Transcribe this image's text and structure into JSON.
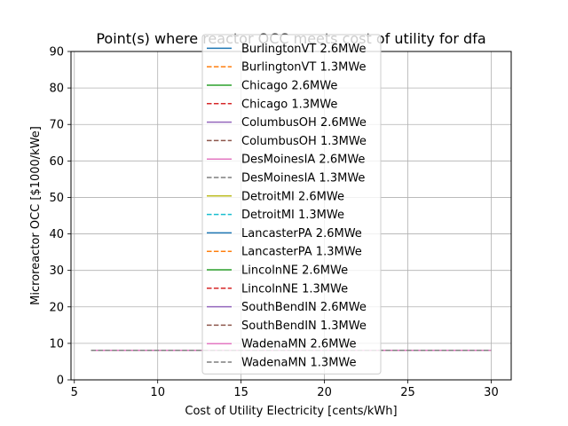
{
  "chart_data": {
    "type": "line",
    "title": "Point(s) where reactor OCC meets cost of utility for dfa",
    "xlabel": "Cost of Utility Electricity [cents/kWh]",
    "ylabel": "Microreactor OCC [$1000/kWe]",
    "xlim": [
      4.8,
      31.2
    ],
    "ylim": [
      0,
      90
    ],
    "xticks": [
      5,
      10,
      15,
      20,
      25,
      30
    ],
    "yticks": [
      0,
      10,
      20,
      30,
      40,
      50,
      60,
      70,
      80,
      90
    ],
    "grid": true,
    "legend_position": "center",
    "x": [
      6,
      30
    ],
    "series": [
      {
        "name": "BurlingtonVT 2.6MWe",
        "values": [
          8.1,
          8.1
        ],
        "color": "#1f77b4",
        "dash": "solid"
      },
      {
        "name": "BurlingtonVT 1.3MWe",
        "values": [
          8.1,
          8.1
        ],
        "color": "#ff7f0e",
        "dash": "dashed"
      },
      {
        "name": "Chicago 2.6MWe",
        "values": [
          8.1,
          8.1
        ],
        "color": "#2ca02c",
        "dash": "solid"
      },
      {
        "name": "Chicago 1.3MWe",
        "values": [
          8.1,
          8.1
        ],
        "color": "#d62728",
        "dash": "dashed"
      },
      {
        "name": "ColumbusOH 2.6MWe",
        "values": [
          8.1,
          8.1
        ],
        "color": "#9467bd",
        "dash": "solid"
      },
      {
        "name": "ColumbusOH 1.3MWe",
        "values": [
          8.1,
          8.1
        ],
        "color": "#8c564b",
        "dash": "dashed"
      },
      {
        "name": "DesMoinesIA 2.6MWe",
        "values": [
          8.1,
          8.1
        ],
        "color": "#e377c2",
        "dash": "solid"
      },
      {
        "name": "DesMoinesIA 1.3MWe",
        "values": [
          8.1,
          8.1
        ],
        "color": "#7f7f7f",
        "dash": "dashed"
      },
      {
        "name": "DetroitMI 2.6MWe",
        "values": [
          8.1,
          8.1
        ],
        "color": "#bcbd22",
        "dash": "solid"
      },
      {
        "name": "DetroitMI 1.3MWe",
        "values": [
          8.1,
          8.1
        ],
        "color": "#17becf",
        "dash": "dashed"
      },
      {
        "name": "LancasterPA 2.6MWe",
        "values": [
          8.1,
          8.1
        ],
        "color": "#1f77b4",
        "dash": "solid"
      },
      {
        "name": "LancasterPA 1.3MWe",
        "values": [
          8.1,
          8.1
        ],
        "color": "#ff7f0e",
        "dash": "dashed"
      },
      {
        "name": "LincolnNE 2.6MWe",
        "values": [
          8.1,
          8.1
        ],
        "color": "#2ca02c",
        "dash": "solid"
      },
      {
        "name": "LincolnNE 1.3MWe",
        "values": [
          8.1,
          8.1
        ],
        "color": "#d62728",
        "dash": "dashed"
      },
      {
        "name": "SouthBendIN 2.6MWe",
        "values": [
          8.1,
          8.1
        ],
        "color": "#9467bd",
        "dash": "solid"
      },
      {
        "name": "SouthBendIN 1.3MWe",
        "values": [
          8.1,
          8.1
        ],
        "color": "#8c564b",
        "dash": "dashed"
      },
      {
        "name": "WadenaMN 2.6MWe",
        "values": [
          8.1,
          8.1
        ],
        "color": "#e377c2",
        "dash": "solid"
      },
      {
        "name": "WadenaMN 1.3MWe",
        "values": [
          8.1,
          8.1
        ],
        "color": "#7f7f7f",
        "dash": "dashed"
      }
    ]
  }
}
